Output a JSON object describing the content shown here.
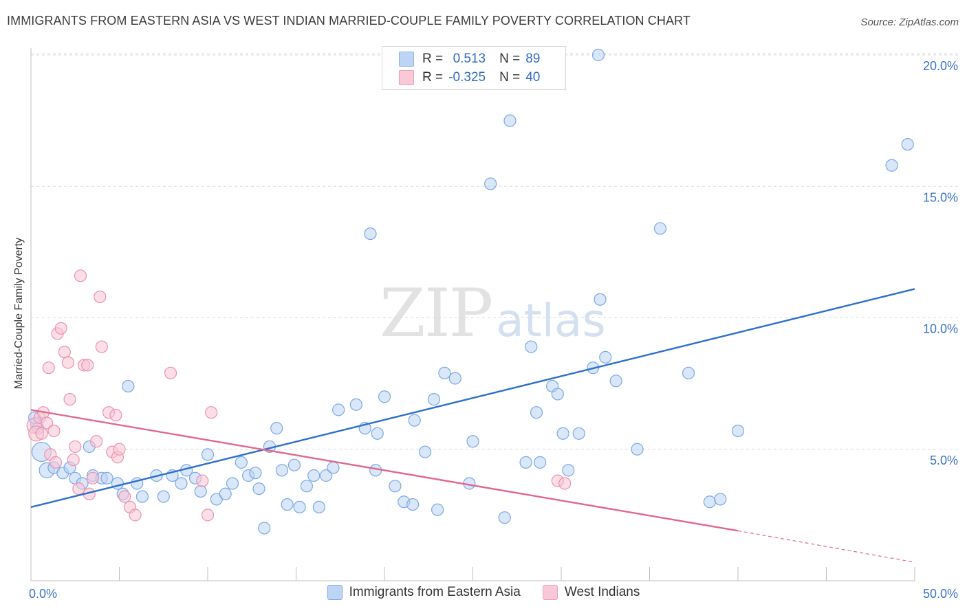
{
  "header": {
    "title": "IMMIGRANTS FROM EASTERN ASIA VS WEST INDIAN MARRIED-COUPLE FAMILY POVERTY CORRELATION CHART",
    "source": "Source: ZipAtlas.com"
  },
  "watermark": {
    "zip": "ZIP",
    "atlas": "atlas"
  },
  "legend_top": {
    "rows": [
      {
        "r_label": "R =",
        "r_value": "0.513",
        "n_label": "N =",
        "n_value": "89",
        "color": "#a9c8f0"
      },
      {
        "r_label": "R =",
        "r_value": "-0.325",
        "n_label": "N =",
        "n_value": "40",
        "color": "#f6b8cb"
      }
    ]
  },
  "legend_bottom": {
    "items": [
      {
        "label": "Immigrants from Eastern Asia",
        "color": "#b9d3f3"
      },
      {
        "label": "West Indians",
        "color": "#f7c4d3"
      }
    ]
  },
  "chart_data": {
    "type": "scatter",
    "title": "IMMIGRANTS FROM EASTERN ASIA VS WEST INDIAN MARRIED-COUPLE FAMILY POVERTY CORRELATION CHART",
    "xlabel": "",
    "ylabel": "Married-Couple Family Poverty",
    "xlim": [
      0,
      50
    ],
    "ylim": [
      0,
      20.5
    ],
    "x_tick_labels": [
      "0.0%",
      "50.0%"
    ],
    "y_ticks": [
      5,
      10,
      15,
      20
    ],
    "y_tick_labels": [
      "5.0%",
      "10.0%",
      "15.0%",
      "20.0%"
    ],
    "grid": "horizontal dashed",
    "legend_position": "bottom",
    "series": [
      {
        "name": "Immigrants from Eastern Asia",
        "color": "#7aa8e6",
        "fill": "#b9d3f3",
        "trend": {
          "x": [
            0,
            50
          ],
          "y": [
            2.8,
            11.1
          ],
          "color": "#2f6fcc"
        },
        "points": [
          [
            0.3,
            6.0
          ],
          [
            0.4,
            5.8
          ],
          [
            0.6,
            4.9
          ],
          [
            0.9,
            4.2
          ],
          [
            1.3,
            4.3
          ],
          [
            1.8,
            4.1
          ],
          [
            2.2,
            4.3
          ],
          [
            2.5,
            3.9
          ],
          [
            2.9,
            3.7
          ],
          [
            3.3,
            5.1
          ],
          [
            3.5,
            4.0
          ],
          [
            4.0,
            3.9
          ],
          [
            4.3,
            3.9
          ],
          [
            4.9,
            3.7
          ],
          [
            5.2,
            3.3
          ],
          [
            5.5,
            7.4
          ],
          [
            6.0,
            3.7
          ],
          [
            6.3,
            3.2
          ],
          [
            7.1,
            4.0
          ],
          [
            7.5,
            3.2
          ],
          [
            8.0,
            4.0
          ],
          [
            8.5,
            3.7
          ],
          [
            8.8,
            4.2
          ],
          [
            9.3,
            3.9
          ],
          [
            9.6,
            3.4
          ],
          [
            10.0,
            4.8
          ],
          [
            10.5,
            3.1
          ],
          [
            11.0,
            3.3
          ],
          [
            11.4,
            3.7
          ],
          [
            11.9,
            4.5
          ],
          [
            12.3,
            4.0
          ],
          [
            12.7,
            4.1
          ],
          [
            12.9,
            3.5
          ],
          [
            13.2,
            2.0
          ],
          [
            13.5,
            5.1
          ],
          [
            13.9,
            5.8
          ],
          [
            14.2,
            4.2
          ],
          [
            14.5,
            2.9
          ],
          [
            14.9,
            4.4
          ],
          [
            15.2,
            2.8
          ],
          [
            15.6,
            3.6
          ],
          [
            16.0,
            4.0
          ],
          [
            16.3,
            2.8
          ],
          [
            16.7,
            4.0
          ],
          [
            17.4,
            6.5
          ],
          [
            17.1,
            4.3
          ],
          [
            18.4,
            6.7
          ],
          [
            18.9,
            5.8
          ],
          [
            19.2,
            13.2
          ],
          [
            19.5,
            4.2
          ],
          [
            19.6,
            5.6
          ],
          [
            20.0,
            7.0
          ],
          [
            20.6,
            3.6
          ],
          [
            21.1,
            3.0
          ],
          [
            21.6,
            2.9
          ],
          [
            21.7,
            6.1
          ],
          [
            22.3,
            4.9
          ],
          [
            22.8,
            6.9
          ],
          [
            23.0,
            2.7
          ],
          [
            23.4,
            7.9
          ],
          [
            24.0,
            7.7
          ],
          [
            24.8,
            3.7
          ],
          [
            25.0,
            5.3
          ],
          [
            26.0,
            15.1
          ],
          [
            26.8,
            2.4
          ],
          [
            27.1,
            17.5
          ],
          [
            28.0,
            4.5
          ],
          [
            28.3,
            8.9
          ],
          [
            28.6,
            6.4
          ],
          [
            28.8,
            4.5
          ],
          [
            29.5,
            7.4
          ],
          [
            29.8,
            7.1
          ],
          [
            30.1,
            5.6
          ],
          [
            30.4,
            4.2
          ],
          [
            31.0,
            5.6
          ],
          [
            31.8,
            8.1
          ],
          [
            32.1,
            20.0
          ],
          [
            32.2,
            10.7
          ],
          [
            32.5,
            8.5
          ],
          [
            33.1,
            7.6
          ],
          [
            34.3,
            5.0
          ],
          [
            35.6,
            13.4
          ],
          [
            37.2,
            7.9
          ],
          [
            38.4,
            3.0
          ],
          [
            39.0,
            3.1
          ],
          [
            40.0,
            5.7
          ],
          [
            48.7,
            15.8
          ],
          [
            49.6,
            16.6
          ],
          [
            0.2,
            6.2
          ]
        ]
      },
      {
        "name": "West Indians",
        "color": "#ef8fb0",
        "fill": "#f7c4d3",
        "trend": {
          "x": [
            0,
            40
          ],
          "y": [
            6.5,
            1.9
          ],
          "dashed_to": [
            50,
            0.7
          ],
          "color": "#e2668f"
        },
        "points": [
          [
            0.2,
            5.9
          ],
          [
            0.3,
            5.6
          ],
          [
            0.5,
            6.2
          ],
          [
            0.7,
            6.4
          ],
          [
            0.9,
            6.0
          ],
          [
            1.0,
            8.1
          ],
          [
            1.1,
            4.8
          ],
          [
            1.3,
            5.7
          ],
          [
            1.4,
            4.5
          ],
          [
            1.5,
            9.4
          ],
          [
            1.7,
            9.6
          ],
          [
            1.9,
            8.7
          ],
          [
            2.1,
            8.3
          ],
          [
            2.2,
            6.9
          ],
          [
            2.4,
            4.6
          ],
          [
            2.5,
            5.1
          ],
          [
            2.7,
            3.5
          ],
          [
            2.8,
            11.6
          ],
          [
            3.0,
            8.2
          ],
          [
            3.2,
            8.2
          ],
          [
            3.3,
            3.3
          ],
          [
            3.5,
            3.9
          ],
          [
            3.7,
            5.3
          ],
          [
            3.9,
            10.8
          ],
          [
            4.0,
            8.9
          ],
          [
            4.4,
            6.4
          ],
          [
            4.6,
            4.9
          ],
          [
            4.8,
            6.3
          ],
          [
            4.9,
            4.7
          ],
          [
            5.0,
            5.0
          ],
          [
            5.3,
            3.2
          ],
          [
            5.6,
            2.8
          ],
          [
            5.9,
            2.5
          ],
          [
            7.9,
            7.9
          ],
          [
            9.7,
            3.8
          ],
          [
            10.0,
            2.5
          ],
          [
            10.2,
            6.4
          ],
          [
            29.8,
            3.8
          ],
          [
            30.2,
            3.7
          ],
          [
            0.6,
            5.6
          ]
        ]
      }
    ]
  }
}
